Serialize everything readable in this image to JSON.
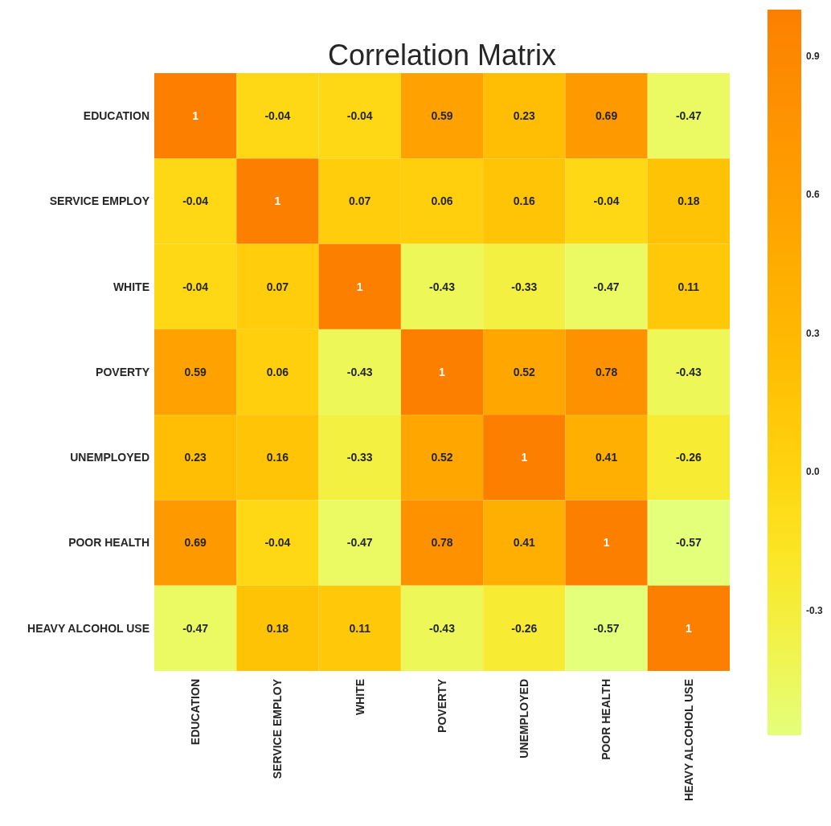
{
  "chart_data": {
    "type": "heatmap",
    "title": "Correlation Matrix",
    "categories": [
      "EDUCATION",
      "SERVICE EMPLOY",
      "WHITE",
      "POVERTY",
      "UNEMPLOYED",
      "POOR HEALTH",
      "HEAVY ALCOHOL USE"
    ],
    "y_categories": [
      "EDUCATION",
      "SERVICE EMPLOY",
      "WHITE",
      "POVERTY",
      "UNEMPLOYED",
      "POOR HEALTH",
      "HEAVY ALCOHOL USE"
    ],
    "cells": [
      [
        1,
        -0.04,
        -0.04,
        0.59,
        0.23,
        0.69,
        -0.47
      ],
      [
        -0.04,
        1,
        0.07,
        0.06,
        0.16,
        -0.04,
        0.18
      ],
      [
        -0.04,
        0.07,
        1,
        -0.43,
        -0.33,
        -0.47,
        0.11
      ],
      [
        0.59,
        0.06,
        -0.43,
        1,
        0.52,
        0.78,
        -0.43
      ],
      [
        0.23,
        0.16,
        -0.33,
        0.52,
        1,
        0.41,
        -0.26
      ],
      [
        0.69,
        -0.04,
        -0.47,
        0.78,
        0.41,
        1,
        -0.57
      ],
      [
        -0.47,
        0.18,
        0.11,
        -0.43,
        -0.26,
        -0.57,
        1
      ]
    ],
    "clim": [
      -0.57,
      1
    ],
    "cticks": [
      0.9,
      0.6,
      0.3,
      {
        "value": 0,
        "label": "0.0"
      },
      -0.3
    ],
    "data_labels": true
  }
}
